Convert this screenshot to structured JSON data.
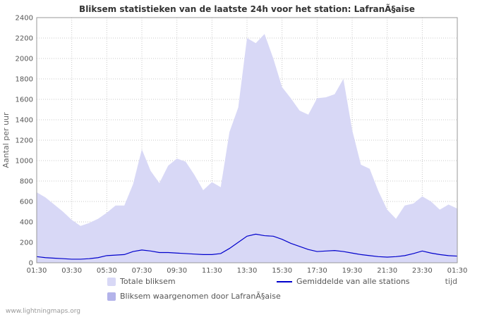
{
  "page": {
    "footer": "www.lightningmaps.org"
  },
  "chart_data": {
    "type": "area",
    "title": "Bliksem statistieken van de laatste 24h voor het station: LafranÃ§aise",
    "ylabel": "Aantal per uur",
    "xlabel": "tijd",
    "ylim": [
      0,
      2400
    ],
    "ytick_step": 200,
    "grid": true,
    "legend_position": "bottom",
    "x_start": "01:30",
    "x_interval_minutes": 30,
    "x_tick_labels": [
      "01:30",
      "03:30",
      "05:30",
      "07:30",
      "09:30",
      "11:30",
      "13:30",
      "15:30",
      "17:30",
      "19:30",
      "21:30",
      "23:30",
      "01:30"
    ],
    "series": [
      {
        "name": "Totale bliksem",
        "type": "area",
        "color": "#d8d8f6",
        "values": [
          690,
          640,
          570,
          500,
          420,
          360,
          390,
          430,
          490,
          560,
          560,
          770,
          1110,
          900,
          780,
          950,
          1020,
          990,
          860,
          710,
          790,
          740,
          1280,
          1520,
          2200,
          2150,
          2240,
          2000,
          1720,
          1610,
          1490,
          1450,
          1610,
          1620,
          1650,
          1800,
          1300,
          960,
          920,
          700,
          520,
          430,
          560,
          580,
          650,
          600,
          520,
          570,
          530
        ]
      },
      {
        "name": "Bliksem waargenomen door LafranÃ§aise",
        "type": "area",
        "color": "#b3b3ea",
        "values": [
          0,
          0,
          0,
          0,
          0,
          0,
          0,
          0,
          0,
          0,
          0,
          0,
          0,
          0,
          0,
          0,
          0,
          0,
          0,
          0,
          0,
          0,
          0,
          0,
          0,
          0,
          0,
          0,
          0,
          0,
          0,
          0,
          0,
          0,
          0,
          0,
          0,
          0,
          0,
          0,
          0,
          0,
          0,
          0,
          0,
          0,
          0,
          0,
          0
        ]
      },
      {
        "name": "Gemiddelde van alle stations",
        "type": "line",
        "color": "#0000cc",
        "values": [
          60,
          50,
          45,
          40,
          35,
          35,
          40,
          50,
          70,
          75,
          80,
          110,
          125,
          115,
          100,
          100,
          95,
          90,
          85,
          80,
          80,
          90,
          140,
          200,
          260,
          280,
          265,
          260,
          230,
          190,
          160,
          130,
          110,
          115,
          120,
          110,
          95,
          80,
          70,
          60,
          55,
          60,
          70,
          90,
          115,
          95,
          80,
          70,
          65
        ]
      }
    ],
    "colors": {
      "grid": "#c8c8c8",
      "axis_text": "#555555",
      "axis_label": "#666666",
      "plot_border": "#999999"
    }
  }
}
